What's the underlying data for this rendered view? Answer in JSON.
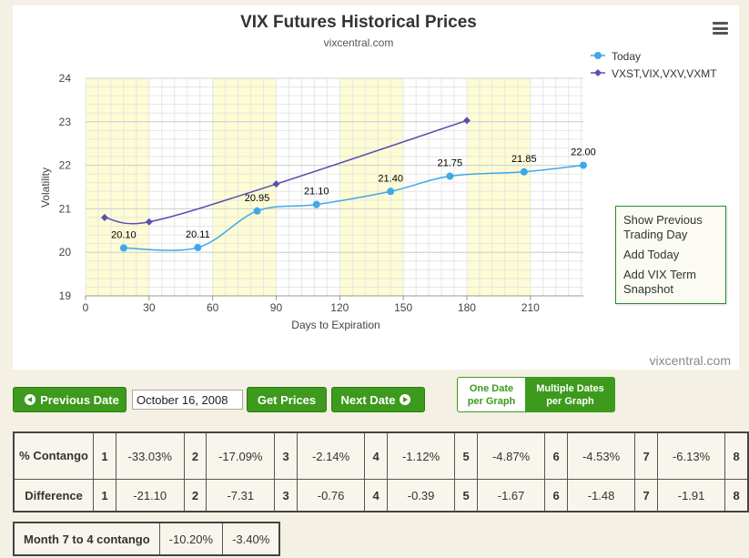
{
  "chart_data": {
    "type": "line",
    "title": "VIX Futures Historical Prices",
    "subtitle": "vixcentral.com",
    "xlabel": "Days to Expiration",
    "ylabel": "Volatility",
    "xlim": [
      0,
      235
    ],
    "ylim": [
      19,
      24
    ],
    "xticks": [
      0,
      30,
      60,
      90,
      120,
      150,
      180,
      210
    ],
    "yticks": [
      19,
      20,
      21,
      22,
      23,
      24
    ],
    "shaded_bands": [
      [
        0,
        30
      ],
      [
        60,
        90
      ],
      [
        120,
        150
      ],
      [
        180,
        210
      ]
    ],
    "legend_position": "top-right",
    "series": [
      {
        "name": "Today",
        "color": "#3fa8e8",
        "marker": "circle",
        "x": [
          18,
          53,
          81,
          109,
          144,
          172,
          207,
          235
        ],
        "y": [
          20.1,
          20.11,
          20.95,
          21.1,
          21.4,
          21.75,
          21.85,
          22.0
        ],
        "labels": [
          "20.10",
          "20.11",
          "20.95",
          "21.10",
          "21.40",
          "21.75",
          "21.85",
          "22.00"
        ]
      },
      {
        "name": "VXST,VIX,VXV,VXMT",
        "color": "#5b4fb0",
        "marker": "diamond",
        "x": [
          9,
          30,
          90,
          180
        ],
        "y": [
          20.8,
          20.7,
          21.57,
          23.03
        ]
      }
    ]
  },
  "credit": "vixcentral.com",
  "menu": {
    "items": [
      "Show Previous Trading Day",
      "Add Today",
      "Add VIX Term Snapshot"
    ]
  },
  "controls": {
    "prev_label": "Previous Date",
    "date_value": "October 16, 2008",
    "get_prices_label": "Get Prices",
    "next_label": "Next Date",
    "one_date_label": "One Date per Graph",
    "multi_date_label": "Multiple Dates per Graph"
  },
  "table": {
    "contango_label": "% Contango",
    "difference_label": "Difference",
    "contango": [
      {
        "idx": "1",
        "val": "-33.03%"
      },
      {
        "idx": "2",
        "val": "-17.09%"
      },
      {
        "idx": "3",
        "val": "-2.14%"
      },
      {
        "idx": "4",
        "val": "-1.12%"
      },
      {
        "idx": "5",
        "val": "-4.87%"
      },
      {
        "idx": "6",
        "val": "-4.53%"
      },
      {
        "idx": "7",
        "val": "-6.13%"
      },
      {
        "idx": "8",
        "val": ""
      }
    ],
    "difference": [
      {
        "idx": "1",
        "val": "-21.10"
      },
      {
        "idx": "2",
        "val": "-7.31"
      },
      {
        "idx": "3",
        "val": "-0.76"
      },
      {
        "idx": "4",
        "val": "-0.39"
      },
      {
        "idx": "5",
        "val": "-1.67"
      },
      {
        "idx": "6",
        "val": "-1.48"
      },
      {
        "idx": "7",
        "val": "-1.91"
      },
      {
        "idx": "8",
        "val": ""
      }
    ]
  },
  "month74": {
    "label": "Month 7 to 4 contango",
    "v1": "-10.20%",
    "v2": "-3.40%"
  }
}
